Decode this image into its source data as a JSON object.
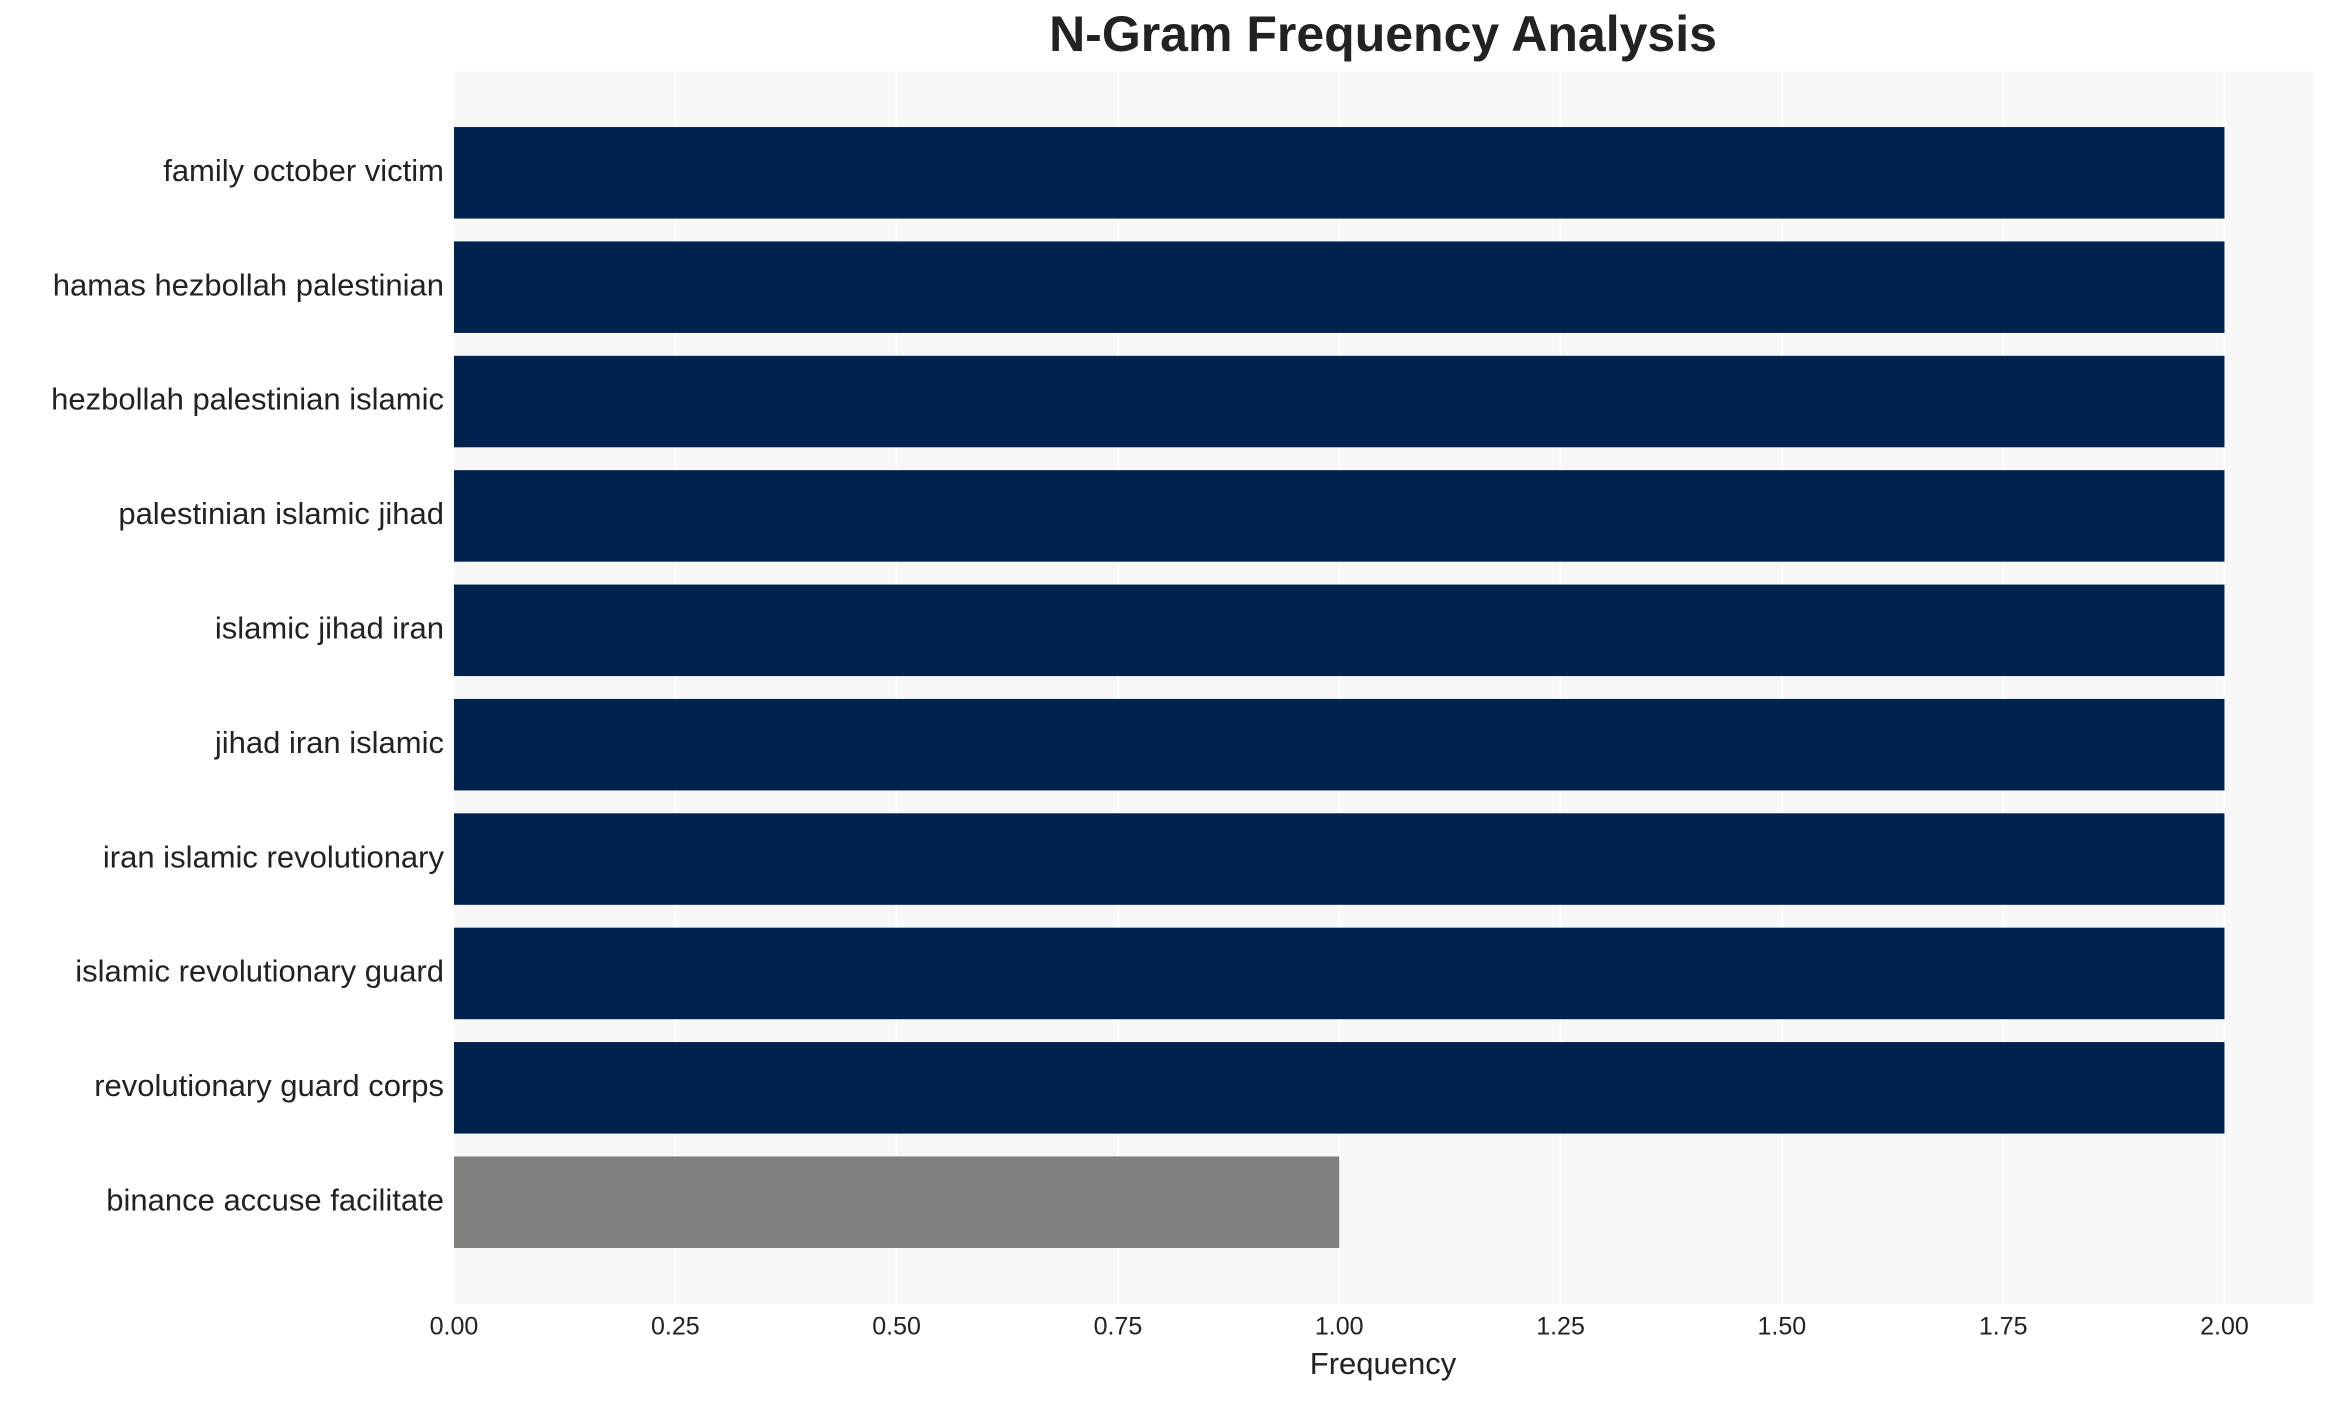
{
  "chart_data": {
    "type": "bar",
    "orientation": "horizontal",
    "title": "N-Gram Frequency Analysis",
    "x_label": "Frequency",
    "categories": [
      "family october victim",
      "hamas hezbollah palestinian",
      "hezbollah palestinian islamic",
      "palestinian islamic jihad",
      "islamic jihad iran",
      "jihad iran islamic",
      "iran islamic revolutionary",
      "islamic revolutionary guard",
      "revolutionary guard corps",
      "binance accuse facilitate"
    ],
    "values": [
      2,
      2,
      2,
      2,
      2,
      2,
      2,
      2,
      2,
      1
    ],
    "colors": [
      "#00224e",
      "#00224e",
      "#00224e",
      "#00224e",
      "#00224e",
      "#00224e",
      "#00224e",
      "#00224e",
      "#00224e",
      "#7f7f7b"
    ],
    "xlim": [
      0,
      2.1
    ],
    "xticks": [
      {
        "value": 0,
        "label": "0.00"
      },
      {
        "value": 0.25,
        "label": "0.25"
      },
      {
        "value": 0.5,
        "label": "0.50"
      },
      {
        "value": 0.75,
        "label": "0.75"
      },
      {
        "value": 1,
        "label": "1.00"
      },
      {
        "value": 1.25,
        "label": "1.25"
      },
      {
        "value": 1.5,
        "label": "1.50"
      },
      {
        "value": 1.75,
        "label": "1.75"
      },
      {
        "value": 2,
        "label": "2.00"
      }
    ],
    "grid": true
  }
}
